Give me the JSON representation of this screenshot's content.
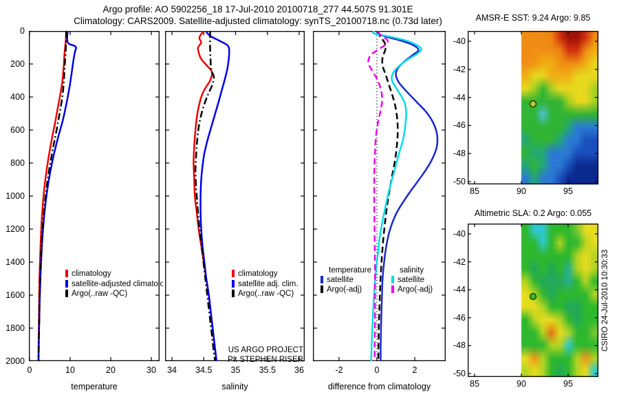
{
  "header": {
    "line1": "Argo profile: AO 5902256_18 17-Jul-2010 20100718_277 44.507S 91.301E",
    "line2": "Climatology: CARS2009. Satellite-adjusted climatology: synTS_20100718.nc (0.73d later)"
  },
  "annotations": {
    "project_line1": "US ARGO PROJECT",
    "project_line2": "PI: STEPHEN RISER",
    "csiro_stamp": "CSIRO 24-Jul-2010 10:30:33"
  },
  "chart_data": [
    {
      "id": "temperature-profile",
      "type": "line",
      "xlabel": "temperature",
      "xticks": [
        0,
        10,
        20,
        30
      ],
      "xlim": [
        -0.2,
        32.2
      ],
      "ylim": [
        0,
        2000
      ],
      "yticks": [
        0,
        200,
        400,
        600,
        800,
        1000,
        1200,
        1400,
        1600,
        1800,
        2000
      ],
      "series": [
        {
          "name": "climatology",
          "color": "#ee0000",
          "dash": "solid",
          "depth": [
            0,
            50,
            90,
            140,
            200,
            260,
            320,
            380,
            440,
            500,
            560,
            640,
            720,
            800,
            880,
            960,
            1040,
            1140,
            1240,
            1340,
            1440,
            1540,
            1640,
            1740,
            1840,
            1940,
            2000
          ],
          "values": [
            9.0,
            8.95,
            8.8,
            8.6,
            8.45,
            8.25,
            8.0,
            7.6,
            7.15,
            6.7,
            6.25,
            5.6,
            5.0,
            4.45,
            4.0,
            3.6,
            3.3,
            3.0,
            2.8,
            2.65,
            2.5,
            2.4,
            2.35,
            2.3,
            2.25,
            2.2,
            2.2
          ]
        },
        {
          "name": "satellite-adjusted climatology",
          "color": "#0000e8",
          "dash": "solid",
          "depth": [
            0,
            70,
            95,
            130,
            180,
            240,
            300,
            360,
            420,
            480,
            540,
            620,
            700,
            780,
            860,
            940,
            1020,
            1120,
            1220,
            1320,
            1420,
            1520,
            1620,
            1720,
            1820,
            1920,
            2000
          ],
          "values": [
            9.4,
            9.4,
            11.35,
            11.15,
            10.8,
            10.45,
            10.1,
            9.7,
            9.25,
            8.75,
            8.2,
            7.3,
            6.45,
            5.7,
            5.05,
            4.5,
            4.05,
            3.6,
            3.25,
            3.0,
            2.8,
            2.65,
            2.5,
            2.42,
            2.33,
            2.25,
            2.2
          ]
        },
        {
          "name": "Argo(..raw -QC)",
          "color": "#000000",
          "dash": "dashdot",
          "depth": [
            0,
            60,
            120,
            180,
            240,
            300,
            360,
            420,
            480,
            540,
            620,
            700,
            780,
            860,
            940,
            1020,
            1120,
            1220,
            1320,
            1420,
            1520,
            1620,
            1720,
            1820,
            1920,
            2000
          ],
          "values": [
            9.05,
            9.0,
            8.9,
            8.75,
            8.6,
            8.45,
            8.25,
            7.95,
            7.55,
            7.1,
            6.5,
            5.85,
            5.25,
            4.7,
            4.25,
            3.85,
            3.45,
            3.15,
            2.9,
            2.72,
            2.58,
            2.47,
            2.4,
            2.33,
            2.27,
            2.22
          ]
        }
      ]
    },
    {
      "id": "salinity-profile",
      "type": "line",
      "xlabel": "salinity",
      "xticks": [
        34,
        34.5,
        35,
        35.5,
        36
      ],
      "xlim": [
        33.89,
        36.09
      ],
      "ylim": [
        0,
        2000
      ],
      "yticks": [
        0,
        200,
        400,
        600,
        800,
        1000,
        1200,
        1400,
        1600,
        1800,
        2000
      ],
      "series": [
        {
          "name": "climatology",
          "color": "#ee0000",
          "dash": "solid",
          "depth": [
            0,
            40,
            70,
            100,
            130,
            170,
            210,
            250,
            300,
            350,
            400,
            500,
            600,
            700,
            800,
            900,
            1000,
            1100,
            1200,
            1300,
            1400,
            1500,
            1600,
            1700,
            1800,
            1900,
            2000
          ],
          "values": [
            34.5,
            34.43,
            34.46,
            34.41,
            34.42,
            34.46,
            34.55,
            34.63,
            34.6,
            34.52,
            34.46,
            34.4,
            34.37,
            34.35,
            34.34,
            34.35,
            34.36,
            34.39,
            34.42,
            34.46,
            34.5,
            34.54,
            34.58,
            34.61,
            34.64,
            34.67,
            34.7
          ]
        },
        {
          "name": "satellite adj. clim.",
          "color": "#0000e8",
          "dash": "solid",
          "depth": [
            0,
            30,
            60,
            90,
            130,
            180,
            230,
            280,
            350,
            420,
            500,
            580,
            660,
            740,
            820,
            900,
            1000,
            1100,
            1200,
            1300,
            1400,
            1500,
            1600,
            1700,
            1800,
            1900,
            2000
          ],
          "values": [
            34.53,
            34.6,
            34.75,
            34.88,
            34.9,
            34.89,
            34.87,
            34.84,
            34.79,
            34.74,
            34.68,
            34.62,
            34.56,
            34.51,
            34.48,
            34.46,
            34.45,
            34.45,
            34.46,
            34.48,
            34.51,
            34.54,
            34.58,
            34.61,
            34.64,
            34.67,
            34.7
          ]
        },
        {
          "name": "Argo(..raw -QC)",
          "color": "#000000",
          "dash": "dashdot",
          "depth": [
            0,
            100,
            200,
            240,
            280,
            330,
            400,
            480,
            560,
            650,
            750,
            850,
            950,
            1050,
            1150,
            1250,
            1350,
            1450,
            1550,
            1650,
            1750,
            1850,
            1950,
            2000
          ],
          "values": [
            34.6,
            34.6,
            34.61,
            34.62,
            34.66,
            34.63,
            34.55,
            34.48,
            34.43,
            34.4,
            34.38,
            34.37,
            34.38,
            34.4,
            34.42,
            34.45,
            34.48,
            34.51,
            34.54,
            34.57,
            34.6,
            34.63,
            34.66,
            34.68
          ]
        }
      ]
    },
    {
      "id": "difference-profile",
      "type": "line",
      "xlabel": "difference from climatology",
      "xticks": [
        -2,
        0,
        2
      ],
      "xlim": [
        -3.38,
        3.64
      ],
      "ylim": [
        0,
        2000
      ],
      "yticks": [
        0,
        200,
        400,
        600,
        800,
        1000,
        1200,
        1400,
        1600,
        1800,
        2000
      ],
      "zero_line": true,
      "legend_groups": [
        {
          "header": "temperature",
          "series": [
            0,
            1
          ]
        },
        {
          "header": "salinity",
          "series": [
            2,
            3
          ]
        }
      ],
      "series": [
        {
          "name": "satellite",
          "group": "temperature",
          "color": "#1828cc",
          "dash": "solid",
          "depth": [
            0,
            15,
            35,
            60,
            85,
            115,
            145,
            180,
            220,
            260,
            310,
            370,
            430,
            490,
            550,
            610,
            660,
            710,
            770,
            840,
            920,
            1000,
            1100,
            1200,
            1300,
            1400,
            1500,
            1600,
            1700,
            1800,
            1900,
            2000
          ],
          "values": [
            0.1,
            0.05,
            0.5,
            1.3,
            1.9,
            2.2,
            1.9,
            1.5,
            1.15,
            1.0,
            1.15,
            1.6,
            2.1,
            2.6,
            2.95,
            3.15,
            3.2,
            3.15,
            2.95,
            2.6,
            2.1,
            1.6,
            1.05,
            0.7,
            0.5,
            0.38,
            0.3,
            0.27,
            0.24,
            0.22,
            0.2,
            0.2
          ]
        },
        {
          "name": "Argo(-adj)",
          "group": "temperature",
          "color": "#000000",
          "dash": "dashed",
          "depth": [
            0,
            30,
            70,
            110,
            160,
            210,
            260,
            320,
            390,
            460,
            540,
            620,
            700,
            790,
            880,
            970,
            1060,
            1160,
            1260,
            1360,
            1460,
            1560,
            1660,
            1760,
            1860,
            1960,
            2000
          ],
          "values": [
            0.05,
            0.15,
            0.4,
            0.45,
            0.3,
            0.3,
            0.45,
            0.62,
            0.82,
            0.98,
            1.08,
            1.1,
            1.05,
            0.95,
            0.8,
            0.66,
            0.54,
            0.43,
            0.34,
            0.27,
            0.21,
            0.17,
            0.14,
            0.11,
            0.09,
            0.08,
            0.08
          ]
        },
        {
          "name": "satellite",
          "group": "salinity",
          "color": "#00dce8",
          "dash": "solid",
          "depth": [
            0,
            15,
            35,
            60,
            85,
            110,
            140,
            175,
            215,
            255,
            300,
            360,
            430,
            500,
            570,
            650,
            750,
            850,
            950,
            1050,
            1150,
            1250,
            1350,
            1450,
            1550,
            1650,
            1750,
            1850,
            1950,
            2000
          ],
          "values": [
            -0.15,
            -0.15,
            0.7,
            1.6,
            2.1,
            2.35,
            2.1,
            1.6,
            1.15,
            0.85,
            0.8,
            1.1,
            1.45,
            1.55,
            1.5,
            1.4,
            1.15,
            0.92,
            0.68,
            0.48,
            0.3,
            0.15,
            0.05,
            -0.05,
            -0.12,
            -0.18,
            -0.22,
            -0.26,
            -0.29,
            -0.3
          ]
        },
        {
          "name": "Argo(-adj)",
          "group": "salinity",
          "color": "#ee00ee",
          "dash": "dashed",
          "depth": [
            0,
            25,
            55,
            80,
            110,
            150,
            195,
            240,
            290,
            350,
            420,
            490,
            560,
            640,
            730,
            830,
            930,
            1030,
            1130,
            1230,
            1330,
            1430,
            1530,
            1630,
            1730,
            1830,
            1930,
            2000
          ],
          "values": [
            0.05,
            0.2,
            0.55,
            0.5,
            0.1,
            -0.35,
            -0.45,
            -0.25,
            0.0,
            0.2,
            0.28,
            0.18,
            0.05,
            -0.05,
            -0.1,
            -0.13,
            -0.14,
            -0.14,
            -0.13,
            -0.12,
            -0.11,
            -0.1,
            -0.1,
            -0.1,
            -0.1,
            -0.11,
            -0.12,
            -0.12
          ]
        }
      ]
    },
    {
      "id": "amsre-sst-map",
      "type": "heatmap",
      "title": "AMSR-E SST: 9.24 Argo: 9.85",
      "xticks": [
        85,
        90,
        95
      ],
      "yticks": [
        -40,
        -42,
        -44,
        -46,
        -48,
        -50
      ],
      "xlim": [
        84.3,
        98.2
      ],
      "ylim": [
        -50.2,
        -39.3
      ],
      "data_lon_range": [
        90,
        98.2
      ],
      "marker": {
        "lon": 91.3,
        "lat": -44.5,
        "fill": "#b9c52a"
      },
      "grid_colors": [
        [
          "#f08c14",
          "#f08c14",
          "#f08c14",
          "#ef8410",
          "#d23010",
          "#a01206",
          "#a01206",
          "#d23010",
          "#f08c14"
        ],
        [
          "#f08c14",
          "#f09014",
          "#f09014",
          "#f08c14",
          "#ee8410",
          "#d23010",
          "#d23010",
          "#f08c14",
          "#f0ae14"
        ],
        [
          "#f09014",
          "#f09414",
          "#f0ae14",
          "#f0ae14",
          "#f09014",
          "#f08c14",
          "#f09014",
          "#f0ae14",
          "#e8d81e"
        ],
        [
          "#f0ae14",
          "#e8d81e",
          "#e8d81e",
          "#f0ae14",
          "#f0ae14",
          "#f0ae14",
          "#e8d81e",
          "#e8d81e",
          "#e8d81e"
        ],
        [
          "#e8d81e",
          "#a6d022",
          "#32b434",
          "#a6d022",
          "#e8d81e",
          "#e8d81e",
          "#e8d81e",
          "#e8d81e",
          "#a6d022"
        ],
        [
          "#32b434",
          "#32b434",
          "#32b434",
          "#32b434",
          "#32b434",
          "#a6d022",
          "#e8d81e",
          "#e8d81e",
          "#a6d022"
        ],
        [
          "#32b434",
          "#32b434",
          "#4cc2dc",
          "#32b434",
          "#32b434",
          "#32b434",
          "#32b434",
          "#32b434",
          "#32b434"
        ],
        [
          "#32b434",
          "#32b434",
          "#32b434",
          "#32b434",
          "#32b434",
          "#22a878",
          "#2a7ad4",
          "#2a7ad4",
          "#2a7ad4"
        ],
        [
          "#22a878",
          "#32b434",
          "#32b434",
          "#32b434",
          "#22a878",
          "#2a7ad4",
          "#2a7ad4",
          "#1a50bc",
          "#1a50bc"
        ],
        [
          "#32b434",
          "#22a878",
          "#22a878",
          "#2a7ad4",
          "#2a7ad4",
          "#2a7ad4",
          "#1a50bc",
          "#1a50bc",
          "#1a50bc"
        ],
        [
          "#22a878",
          "#32b434",
          "#22a878",
          "#2a7ad4",
          "#2a7ad4",
          "#1a50bc",
          "#0a2a8e",
          "#0a2a8e",
          "#0a2a8e"
        ],
        [
          "#2a7ad4",
          "#22a878",
          "#2a7ad4",
          "#2a7ad4",
          "#1a50bc",
          "#0a2a8e",
          "#0a2a8e",
          "#0a2a8e",
          "#0a2a8e"
        ]
      ]
    },
    {
      "id": "altimetric-sla-map",
      "type": "heatmap",
      "title": "Altimetric SLA: 0.2 Argo: 0.055",
      "xticks": [
        85,
        90,
        95
      ],
      "yticks": [
        -40,
        -42,
        -44,
        -46,
        -48,
        -50
      ],
      "xlim": [
        84.3,
        98.2
      ],
      "ylim": [
        -50.25,
        -39.3
      ],
      "data_lon_range": [
        90,
        98.2
      ],
      "marker": {
        "lon": 91.3,
        "lat": -44.5,
        "fill": "#2eb82e"
      },
      "grid_colors": [
        [
          "#2eb82e",
          "#2ec8d2",
          "#2ec8d2",
          "#2eb82e",
          "#2eb82e",
          "#2eb82e",
          "#7cc832",
          "#e8dc1e",
          "#e8dc1e"
        ],
        [
          "#2eb82e",
          "#2eb82e",
          "#2ec8d2",
          "#2eb82e",
          "#b4d422",
          "#2eb82e",
          "#2eb82e",
          "#b4d422",
          "#e8dc1e"
        ],
        [
          "#2eb82e",
          "#2eb82e",
          "#2eb82e",
          "#2eb82e",
          "#2eb82e",
          "#2eb82e",
          "#b4d422",
          "#e8dc1e",
          "#b4d422"
        ],
        [
          "#2eb82e",
          "#22a85a",
          "#2eb82e",
          "#22a85a",
          "#2eb82e",
          "#28b08c",
          "#b4d422",
          "#e8dc1e",
          "#b4d422"
        ],
        [
          "#b4d422",
          "#2eb82e",
          "#22a85a",
          "#22a85a",
          "#22a85a",
          "#28b08c",
          "#2eb82e",
          "#b4d422",
          "#2eb82e"
        ],
        [
          "#e8dc1e",
          "#b4d422",
          "#2eb82e",
          "#22a85a",
          "#2eb82e",
          "#2eb82e",
          "#2eb82e",
          "#2eb82e",
          "#b4d422"
        ],
        [
          "#e8dc1e",
          "#e8dc1e",
          "#b4d422",
          "#2eb82e",
          "#2eb82e",
          "#22a85a",
          "#22a85a",
          "#2eb82e",
          "#2eb82e"
        ],
        [
          "#2eb82e",
          "#b4d422",
          "#e8dc1e",
          "#e8dc1e",
          "#b4d422",
          "#2eb82e",
          "#22a85a",
          "#2eb82e",
          "#2eb82e"
        ],
        [
          "#2eb82e",
          "#2eb82e",
          "#b4d422",
          "#e87014",
          "#e8dc1e",
          "#b4d422",
          "#2eb82e",
          "#2eb82e",
          "#7cc832"
        ],
        [
          "#2eb82e",
          "#2eb82e",
          "#2eb82e",
          "#b4d422",
          "#b4d422",
          "#2ec8d2",
          "#2eb82e",
          "#2eb82e",
          "#2eb82e"
        ],
        [
          "#e8dc1e",
          "#f0941c",
          "#b4d422",
          "#2eb82e",
          "#2eb82e",
          "#2eb82e",
          "#b4d422",
          "#f0941c",
          "#b4d422"
        ],
        [
          "#b4d422",
          "#e8dc1e",
          "#b4d422",
          "#2eb82e",
          "#22a85a",
          "#2eb82e",
          "#b4d422",
          "#e8dc1e",
          "#2ec8d2"
        ]
      ]
    }
  ]
}
